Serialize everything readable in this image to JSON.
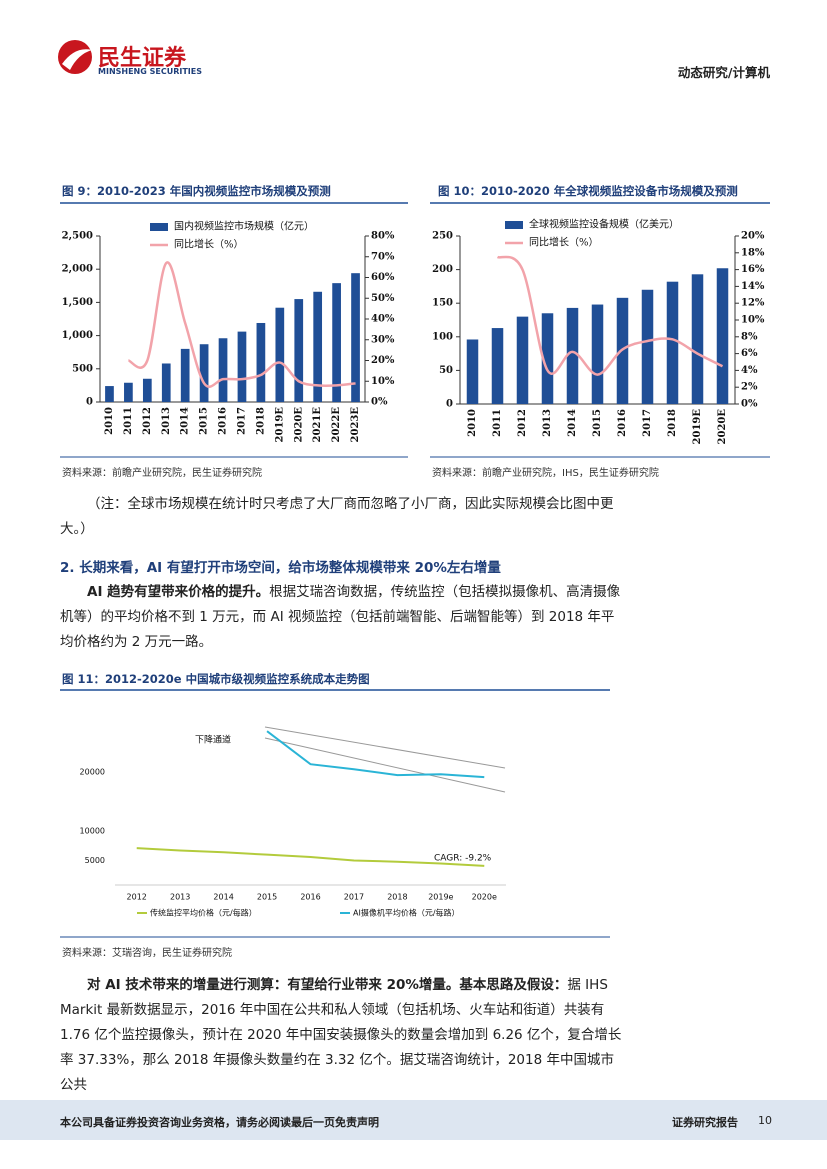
{
  "header": {
    "logo_cn": "民生证券",
    "logo_en": "MINSHENG SECURITIES",
    "section": "动态研究/计算机"
  },
  "chart_data": [
    {
      "type": "bar",
      "title": "图 9：2010-2023 年国内视频监控市场规模及预测",
      "source": "资料来源：前瞻产业研究院，民生证券研究院",
      "categories": [
        "2010",
        "2011",
        "2012",
        "2013",
        "2014",
        "2015",
        "2016",
        "2017",
        "2018",
        "2019E",
        "2020E",
        "2021E",
        "2022E",
        "2023E"
      ],
      "series": [
        {
          "name": "国内视频监控市场规模（亿元）",
          "type": "bar",
          "color": "#1f4e96",
          "values": [
            240,
            290,
            350,
            580,
            800,
            870,
            960,
            1060,
            1190,
            1420,
            1550,
            1660,
            1790,
            1940
          ]
        },
        {
          "name": "同比增长（%）",
          "type": "line",
          "axis": "y2",
          "color": "#f2a3aa",
          "values": [
            null,
            20,
            20,
            67,
            38,
            9,
            11,
            11,
            13,
            19,
            10,
            8,
            8,
            9
          ]
        }
      ],
      "ylim": [
        0,
        2500
      ],
      "yticks": [
        0,
        500,
        {
          "value": 1000,
          "label": "1,000"
        },
        {
          "value": 1500,
          "label": "1,500"
        },
        {
          "value": 2000,
          "label": "2,000"
        },
        {
          "value": 2500,
          "label": "2,500"
        }
      ],
      "y2lim": [
        0,
        80
      ],
      "y2ticks": [
        {
          "value": 0,
          "label": "0%"
        },
        {
          "value": 10,
          "label": "10%"
        },
        {
          "value": 20,
          "label": "20%"
        },
        {
          "value": 30,
          "label": "30%"
        },
        {
          "value": 40,
          "label": "40%"
        },
        {
          "value": 50,
          "label": "50%"
        },
        {
          "value": 60,
          "label": "60%"
        },
        {
          "value": 70,
          "label": "70%"
        },
        {
          "value": 80,
          "label": "80%"
        }
      ]
    },
    {
      "type": "bar",
      "title": "图 10：2010-2020 年全球视频监控设备市场规模及预测",
      "source": "资料来源：前瞻产业研究院，IHS，民生证券研究院",
      "categories": [
        "2010",
        "2011",
        "2012",
        "2013",
        "2014",
        "2015",
        "2016",
        "2017",
        "2018",
        "2019E",
        "2020E"
      ],
      "series": [
        {
          "name": "全球视频监控设备规模（亿美元）",
          "type": "bar",
          "color": "#1f4e96",
          "values": [
            96,
            113,
            130,
            135,
            143,
            148,
            158,
            170,
            182,
            193,
            202
          ]
        },
        {
          "name": "同比增长（%）",
          "type": "line",
          "axis": "y2",
          "color": "#f2a3aa",
          "values": [
            null,
            17.5,
            16,
            4,
            6.2,
            3.5,
            6.5,
            7.5,
            7.7,
            6,
            4.5
          ]
        }
      ],
      "ylim": [
        0,
        250
      ],
      "yticks": [
        0,
        50,
        100,
        150,
        200,
        250
      ],
      "y2lim": [
        0,
        20
      ],
      "y2ticks": [
        {
          "value": 0,
          "label": "0%"
        },
        {
          "value": 2,
          "label": "2%"
        },
        {
          "value": 4,
          "label": "4%"
        },
        {
          "value": 6,
          "label": "6%"
        },
        {
          "value": 8,
          "label": "8%"
        },
        {
          "value": 10,
          "label": "10%"
        },
        {
          "value": 12,
          "label": "12%"
        },
        {
          "value": 14,
          "label": "14%"
        },
        {
          "value": 16,
          "label": "16%"
        },
        {
          "value": 18,
          "label": "18%"
        },
        {
          "value": 20,
          "label": "20%"
        }
      ]
    },
    {
      "type": "line",
      "title": "图 11：2012-2020e 中国城市级视频监控系统成本走势图",
      "source": "资料来源：艾瑞咨询，民生证券研究院",
      "categories": [
        "2012",
        "2013",
        "2014",
        "2015",
        "2016",
        "2017",
        "2018",
        "2019e",
        "2020e"
      ],
      "series": [
        {
          "name": "传统监控平均价格（元/每路）",
          "color": "#b3cb3c",
          "values": [
            7100,
            6700,
            6400,
            6000,
            5600,
            5000,
            4800,
            4500,
            4100
          ]
        },
        {
          "name": "AI摄像机平均价格（元/每路）",
          "color": "#2ab4d6",
          "values": [
            null,
            null,
            null,
            26950,
            21350,
            20500,
            19500,
            19650,
            19150
          ]
        }
      ],
      "ylim": [
        850,
        28000
      ],
      "yticks": [
        5000,
        10000,
        20000
      ],
      "annotations": [
        "下降通道",
        "CAGR: -9.2%"
      ]
    }
  ],
  "body": {
    "note": "（注：全球市场规模在统计时只考虑了大厂商而忽略了小厂商，因此实际规模会比图中更大。）",
    "heading": "2. 长期来看，AI 有望打开市场空间，给市场整体规模带来 20%左右增量",
    "paragraphs": [
      {
        "bold": "AI 趋势有望带来价格的提升。",
        "text": "根据艾瑞咨询数据，传统监控（包括模拟摄像机、高清摄像机等）的平均价格不到 1 万元，而 AI 视频监控（包括前端智能、后端智能等）到 2018 年平均价格约为 2 万元一路。"
      },
      {
        "bold": "对 AI 技术带来的增量进行测算：有望给行业带来 20%增量。基本思路及假设：",
        "text": "据 IHS Markit 最新数据显示，2016 年中国在公共和私人领域（包括机场、火车站和街道）共装有 1.76 亿个监控摄像头，预计在 2020 年中国安装摄像头的数量会增加到 6.26 亿个，复合增长率 37.33%，那么 2018 年摄像头数量约在 3.32 亿个。据艾瑞咨询统计，2018 年中国城市公共"
      }
    ]
  },
  "footer": {
    "disclaimer": "本公司具备证券投资咨询业务资格，请务必阅读最后一页免责声明",
    "label": "证券研究报告",
    "page": "10"
  }
}
